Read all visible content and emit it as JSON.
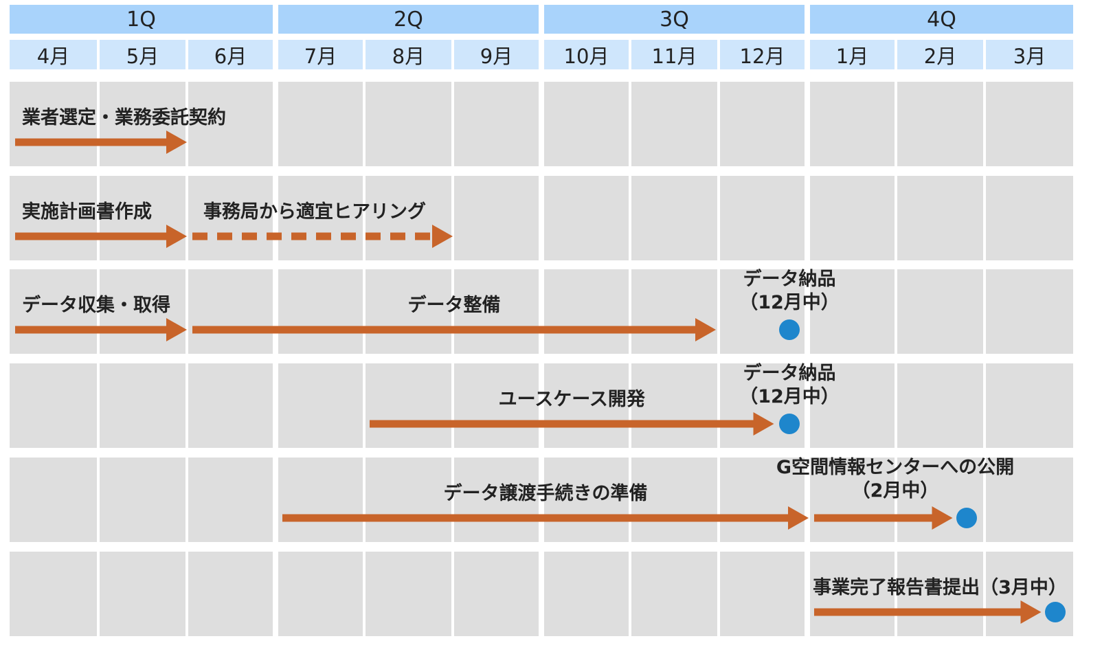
{
  "quarters": [
    "1Q",
    "2Q",
    "3Q",
    "4Q"
  ],
  "months": [
    "4月",
    "5月",
    "6月",
    "7月",
    "8月",
    "9月",
    "10月",
    "11月",
    "12月",
    "1月",
    "2月",
    "3月"
  ],
  "colors": {
    "quarter_header": "#a9d3fb",
    "month_header": "#cfe6fc",
    "cell": "#dedede",
    "arrow": "#c8642a",
    "milestone": "#1e86cc"
  },
  "rows": [
    {
      "tasks": [
        {
          "label": "業者選定・業務委託契約",
          "start": 0,
          "end": 2,
          "style": "solid"
        }
      ]
    },
    {
      "tasks": [
        {
          "label": "実施計画書作成",
          "start": 0,
          "end": 2,
          "style": "solid"
        },
        {
          "label": "事務局から適宜ヒアリング",
          "start": 2,
          "end": 5,
          "style": "dashed"
        }
      ]
    },
    {
      "tasks": [
        {
          "label": "データ収集・取得",
          "start": 0,
          "end": 2,
          "style": "solid"
        },
        {
          "label": "データ整備",
          "start": 2,
          "end": 8,
          "style": "solid"
        }
      ],
      "milestone": {
        "month": 8,
        "label_line1": "データ納品",
        "label_line2": "（12月中）"
      }
    },
    {
      "tasks": [
        {
          "label": "ユースケース開発",
          "start": 4,
          "end": 9,
          "style": "solid"
        }
      ],
      "milestone": {
        "month": 8,
        "label_line1": "データ納品",
        "label_line2": "（12月中）"
      }
    },
    {
      "tasks": [
        {
          "label": "データ譲渡手続きの準備",
          "start": 3,
          "end": 9,
          "style": "solid"
        },
        {
          "label": "",
          "start": 9,
          "end": 11,
          "style": "solid"
        }
      ],
      "milestone": {
        "month": 10,
        "label_line1": "G空間情報センターへの公開",
        "label_line2": "（2月中）"
      }
    },
    {
      "tasks": [
        {
          "label": "",
          "start": 9,
          "end": 12,
          "style": "solid"
        }
      ],
      "milestone": {
        "month": 11,
        "label_line1": "事業完了報告書提出（3月中）",
        "label_line2": ""
      }
    }
  ]
}
